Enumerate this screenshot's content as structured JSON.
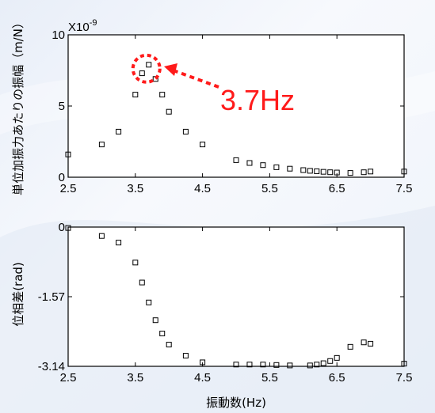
{
  "chart_data": [
    {
      "type": "scatter",
      "panel": "amplitude",
      "ylabel": "単位加振力あたりの振幅（m/N）",
      "xlabel": "",
      "y_multiplier_label": "X10",
      "y_multiplier_exp": "-9",
      "xlim": [
        2.5,
        7.5
      ],
      "ylim": [
        0,
        10
      ],
      "xticks": [
        "2.5",
        "3.5",
        "4.5",
        "5.5",
        "6.5",
        "7.5"
      ],
      "yticks": [
        "0",
        "5",
        "10"
      ],
      "annotation": "3.7Hz",
      "annotation_x": 3.7,
      "marker_color": "#000000",
      "annotation_color": "#ff1a1a",
      "points": [
        {
          "x": 2.5,
          "y": 1.6
        },
        {
          "x": 3.0,
          "y": 2.3
        },
        {
          "x": 3.25,
          "y": 3.2
        },
        {
          "x": 3.5,
          "y": 5.8
        },
        {
          "x": 3.6,
          "y": 7.3
        },
        {
          "x": 3.7,
          "y": 7.9
        },
        {
          "x": 3.8,
          "y": 6.9
        },
        {
          "x": 3.9,
          "y": 5.8
        },
        {
          "x": 4.0,
          "y": 4.6
        },
        {
          "x": 4.25,
          "y": 3.2
        },
        {
          "x": 4.5,
          "y": 2.3
        },
        {
          "x": 5.0,
          "y": 1.2
        },
        {
          "x": 5.2,
          "y": 1.0
        },
        {
          "x": 5.4,
          "y": 0.85
        },
        {
          "x": 5.6,
          "y": 0.7
        },
        {
          "x": 5.8,
          "y": 0.6
        },
        {
          "x": 6.0,
          "y": 0.5
        },
        {
          "x": 6.1,
          "y": 0.45
        },
        {
          "x": 6.2,
          "y": 0.42
        },
        {
          "x": 6.3,
          "y": 0.38
        },
        {
          "x": 6.4,
          "y": 0.35
        },
        {
          "x": 6.5,
          "y": 0.33
        },
        {
          "x": 6.7,
          "y": 0.3
        },
        {
          "x": 6.9,
          "y": 0.35
        },
        {
          "x": 7.0,
          "y": 0.4
        },
        {
          "x": 7.5,
          "y": 0.4
        }
      ]
    },
    {
      "type": "scatter",
      "panel": "phase",
      "ylabel": "位相差(rad)",
      "xlabel": "振動数(Hz)",
      "xlim": [
        2.5,
        7.5
      ],
      "ylim": [
        -3.14,
        0
      ],
      "xticks": [
        "2.5",
        "3.5",
        "4.5",
        "5.5",
        "6.5",
        "7.5"
      ],
      "yticks": [
        "0",
        "-1.57",
        "-3.14"
      ],
      "marker_color": "#000000",
      "points": [
        {
          "x": 2.5,
          "y": -0.02
        },
        {
          "x": 3.0,
          "y": -0.2
        },
        {
          "x": 3.25,
          "y": -0.35
        },
        {
          "x": 3.5,
          "y": -0.8
        },
        {
          "x": 3.6,
          "y": -1.25
        },
        {
          "x": 3.7,
          "y": -1.7
        },
        {
          "x": 3.8,
          "y": -2.1
        },
        {
          "x": 3.9,
          "y": -2.4
        },
        {
          "x": 4.0,
          "y": -2.65
        },
        {
          "x": 4.25,
          "y": -2.9
        },
        {
          "x": 4.5,
          "y": -3.05
        },
        {
          "x": 5.0,
          "y": -3.1
        },
        {
          "x": 5.2,
          "y": -3.1
        },
        {
          "x": 5.4,
          "y": -3.1
        },
        {
          "x": 5.6,
          "y": -3.11
        },
        {
          "x": 5.8,
          "y": -3.12
        },
        {
          "x": 6.1,
          "y": -3.12
        },
        {
          "x": 6.2,
          "y": -3.1
        },
        {
          "x": 6.3,
          "y": -3.07
        },
        {
          "x": 6.4,
          "y": -3.02
        },
        {
          "x": 6.5,
          "y": -2.95
        },
        {
          "x": 6.7,
          "y": -2.7
        },
        {
          "x": 6.9,
          "y": -2.6
        },
        {
          "x": 7.0,
          "y": -2.63
        },
        {
          "x": 7.5,
          "y": -3.08
        }
      ]
    }
  ]
}
